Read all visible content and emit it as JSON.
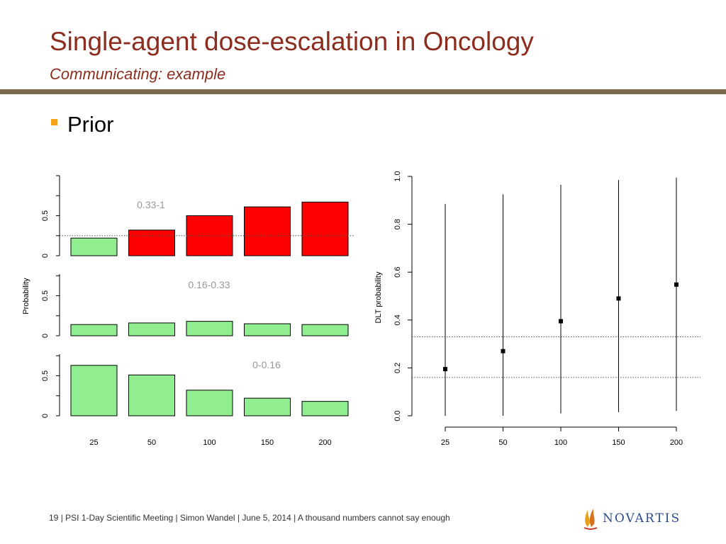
{
  "header": {
    "title": "Single-agent dose-escalation in Oncology",
    "subtitle": "Communicating: example"
  },
  "content": {
    "bullet": "Prior"
  },
  "footer": {
    "page": "19",
    "text": "| PSI 1-Day Scientific Meeting | Simon Wandel | June 5, 2014 | A thousand numbers cannot say enough"
  },
  "logo": {
    "text": "NOVARTIS",
    "icon": "novartis-flame-icon"
  },
  "colors": {
    "title": "#8b2e1f",
    "bar_green": "#90ee90",
    "bar_red": "#ff0000",
    "bullet": "#f4a21c",
    "rule": "#7b6a4e"
  },
  "chart_data": [
    {
      "type": "bar",
      "ylabel": "Probability",
      "categories": [
        "25",
        "50",
        "100",
        "150",
        "200"
      ],
      "panels": [
        {
          "label": "0.33-1",
          "values": [
            0.22,
            0.32,
            0.5,
            0.61,
            0.67
          ],
          "colors": [
            "#90ee90",
            "#ff0000",
            "#ff0000",
            "#ff0000",
            "#ff0000"
          ],
          "ylim": [
            0,
            1
          ],
          "yticks": [
            "0",
            "0.5"
          ],
          "ref_line": 0.25
        },
        {
          "label": "0.16-0.33",
          "values": [
            0.14,
            0.16,
            0.18,
            0.15,
            0.14
          ],
          "colors": [
            "#90ee90",
            "#90ee90",
            "#90ee90",
            "#90ee90",
            "#90ee90"
          ],
          "ylim": [
            0,
            1
          ],
          "yticks": [
            "0",
            "0.5"
          ]
        },
        {
          "label": "0-0.16",
          "values": [
            0.63,
            0.51,
            0.32,
            0.22,
            0.18
          ],
          "colors": [
            "#90ee90",
            "#90ee90",
            "#90ee90",
            "#90ee90",
            "#90ee90"
          ],
          "ylim": [
            0,
            1
          ],
          "yticks": [
            "0",
            "0.5"
          ]
        }
      ]
    },
    {
      "type": "scatter",
      "ylabel": "DLT probability",
      "categories": [
        "25",
        "50",
        "100",
        "150",
        "200"
      ],
      "ylim": [
        0,
        1
      ],
      "yticks": [
        "0.0",
        "0.2",
        "0.4",
        "0.6",
        "0.8",
        "1.0"
      ],
      "points": [
        0.195,
        0.27,
        0.395,
        0.49,
        0.548
      ],
      "intervals": [
        [
          0.0,
          0.885
        ],
        [
          0.0,
          0.925
        ],
        [
          0.01,
          0.965
        ],
        [
          0.015,
          0.985
        ],
        [
          0.02,
          0.995
        ]
      ],
      "ref_lines": [
        0.16,
        0.33
      ]
    }
  ]
}
